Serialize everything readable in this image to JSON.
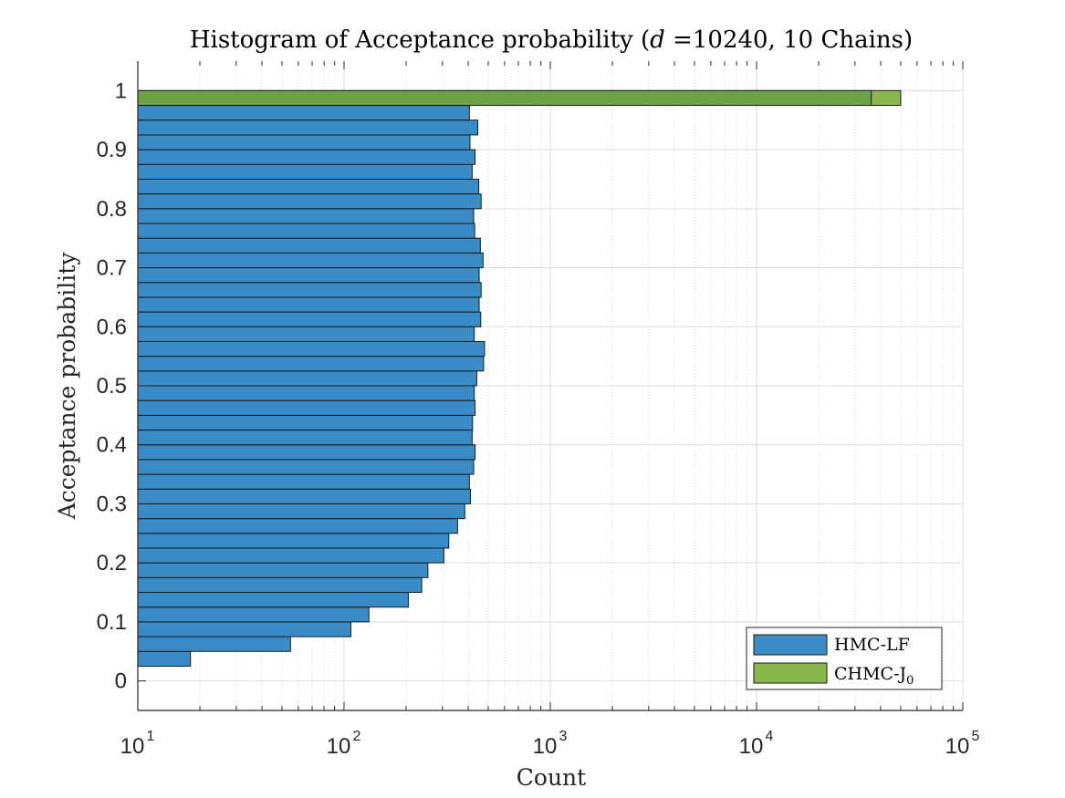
{
  "chart_data": {
    "type": "bar",
    "orientation": "horizontal",
    "title_prefix": "Histogram of Acceptance probability (",
    "title_var": "d",
    "title_suffix": " =10240, 10 Chains)",
    "xlabel": "Count",
    "ylabel": "Acceptance probability",
    "x_scale": "log",
    "xlim": [
      10,
      100000
    ],
    "ylim": [
      -0.05,
      1.05
    ],
    "x_ticks": [
      {
        "base": "10",
        "exp": "1",
        "value": 10
      },
      {
        "base": "10",
        "exp": "2",
        "value": 100
      },
      {
        "base": "10",
        "exp": "3",
        "value": 1000
      },
      {
        "base": "10",
        "exp": "4",
        "value": 10000
      },
      {
        "base": "10",
        "exp": "5",
        "value": 100000
      }
    ],
    "y_ticks": [
      "0",
      "0.1",
      "0.2",
      "0.3",
      "0.4",
      "0.5",
      "0.6",
      "0.7",
      "0.8",
      "0.9",
      "1"
    ],
    "grid": true,
    "legend_position": "bottom-right",
    "bin_width": 0.025,
    "series": [
      {
        "name": "HMC-LF",
        "color": "#3a8cc7",
        "bins": [
          {
            "y": 0.0375,
            "count": 18
          },
          {
            "y": 0.0625,
            "count": 55
          },
          {
            "y": 0.0875,
            "count": 108
          },
          {
            "y": 0.1125,
            "count": 132
          },
          {
            "y": 0.1375,
            "count": 205
          },
          {
            "y": 0.1625,
            "count": 238
          },
          {
            "y": 0.1875,
            "count": 255
          },
          {
            "y": 0.2125,
            "count": 305
          },
          {
            "y": 0.2375,
            "count": 322
          },
          {
            "y": 0.2625,
            "count": 355
          },
          {
            "y": 0.2875,
            "count": 385
          },
          {
            "y": 0.3125,
            "count": 410
          },
          {
            "y": 0.3375,
            "count": 405
          },
          {
            "y": 0.3625,
            "count": 425
          },
          {
            "y": 0.3875,
            "count": 432
          },
          {
            "y": 0.4125,
            "count": 418
          },
          {
            "y": 0.4375,
            "count": 420
          },
          {
            "y": 0.4625,
            "count": 432
          },
          {
            "y": 0.4875,
            "count": 428
          },
          {
            "y": 0.5125,
            "count": 440
          },
          {
            "y": 0.5375,
            "count": 475
          },
          {
            "y": 0.5625,
            "count": 480
          },
          {
            "y": 0.5875,
            "count": 428
          },
          {
            "y": 0.6125,
            "count": 460
          },
          {
            "y": 0.6375,
            "count": 452
          },
          {
            "y": 0.6625,
            "count": 462
          },
          {
            "y": 0.6875,
            "count": 452
          },
          {
            "y": 0.7125,
            "count": 472
          },
          {
            "y": 0.7375,
            "count": 458
          },
          {
            "y": 0.7625,
            "count": 430
          },
          {
            "y": 0.7875,
            "count": 425
          },
          {
            "y": 0.8125,
            "count": 462
          },
          {
            "y": 0.8375,
            "count": 450
          },
          {
            "y": 0.8625,
            "count": 418
          },
          {
            "y": 0.8875,
            "count": 432
          },
          {
            "y": 0.9125,
            "count": 408
          },
          {
            "y": 0.9375,
            "count": 445
          },
          {
            "y": 0.9625,
            "count": 405
          }
        ]
      },
      {
        "name": "CHMC-J",
        "name_sub": "0",
        "color": "#89b94e",
        "bins": [
          {
            "y": 0.9875,
            "count": 50000
          }
        ]
      }
    ],
    "overlap": {
      "y": 0.9875,
      "count": 36000,
      "color": "#6aa244"
    }
  }
}
